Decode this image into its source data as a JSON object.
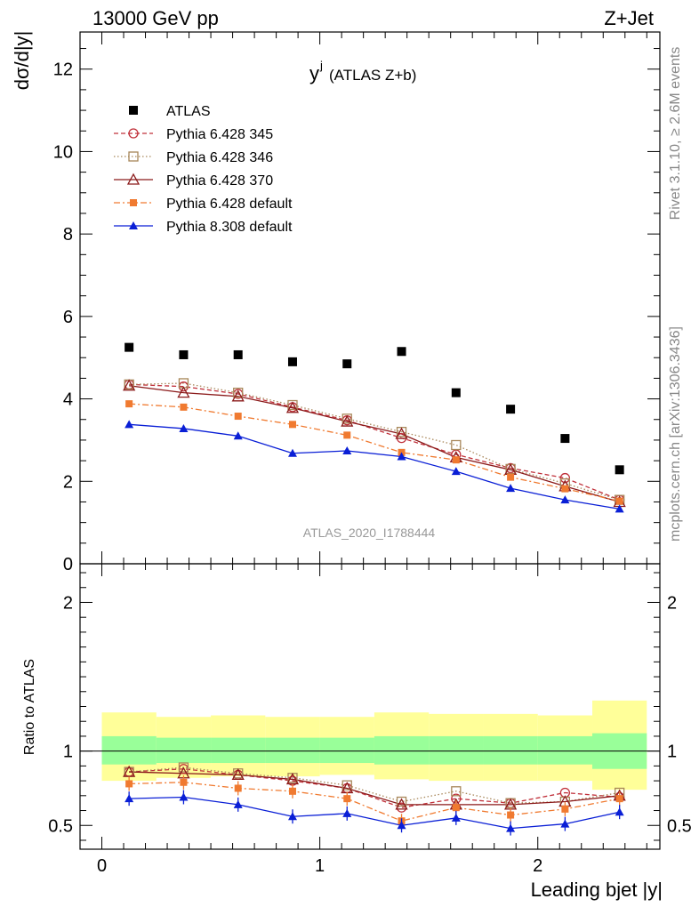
{
  "header": {
    "energy_label": "13000 GeV pp",
    "process_label": "Z+Jet"
  },
  "side_labels": {
    "rivet": "Rivet 3.1.10, ≥ 2.6M events",
    "mcplots": "mcplots.cern.ch [arXiv:1306.3436]"
  },
  "chart_data": {
    "type": "scatter",
    "title_main": "y",
    "title_sup": "j",
    "title_rest": "(ATLAS Z+b)",
    "analysis_id": "ATLAS_2020_I1788444",
    "xlabel": "Leading bjet |y|",
    "ylabel_top": "dσ/d|y|",
    "ylabel_ratio": "Ratio to ATLAS",
    "xlim": [
      -0.1,
      2.56
    ],
    "ylim_top": [
      0,
      12.9
    ],
    "ylim_ratio": [
      0.34,
      2.26
    ],
    "x_ticks": [
      "0",
      "1",
      "2"
    ],
    "y_ticks_top": [
      "0",
      "2",
      "4",
      "6",
      "8",
      "10",
      "12"
    ],
    "y_ticks_ratio": [
      "0.5",
      "1",
      "2"
    ],
    "grid": false,
    "legend_position": "top-left",
    "bins": [
      0.0,
      0.25,
      0.5,
      0.75,
      1.0,
      1.25,
      1.5,
      1.75,
      2.0,
      2.25,
      2.5
    ],
    "x": [
      0.125,
      0.375,
      0.625,
      0.875,
      1.125,
      1.375,
      1.625,
      1.875,
      2.125,
      2.375
    ],
    "data": {
      "name": "ATLAS",
      "values": [
        5.25,
        5.07,
        5.07,
        4.9,
        4.85,
        5.15,
        4.15,
        3.75,
        3.04,
        2.28
      ]
    },
    "band_green": [
      [
        0.91,
        1.1
      ],
      [
        0.92,
        1.09
      ],
      [
        0.92,
        1.09
      ],
      [
        0.92,
        1.09
      ],
      [
        0.92,
        1.09
      ],
      [
        0.91,
        1.1
      ],
      [
        0.91,
        1.1
      ],
      [
        0.91,
        1.1
      ],
      [
        0.91,
        1.1
      ],
      [
        0.88,
        1.12
      ]
    ],
    "band_yellow": [
      [
        0.8,
        1.26
      ],
      [
        0.82,
        1.23
      ],
      [
        0.83,
        1.24
      ],
      [
        0.83,
        1.23
      ],
      [
        0.84,
        1.23
      ],
      [
        0.81,
        1.26
      ],
      [
        0.8,
        1.25
      ],
      [
        0.8,
        1.25
      ],
      [
        0.8,
        1.24
      ],
      [
        0.74,
        1.34
      ]
    ],
    "series": [
      {
        "name": "Pythia 6.428 345",
        "color": "#c0303a",
        "marker": "circle-open",
        "dash": "5,3",
        "values": [
          4.35,
          4.3,
          4.12,
          3.8,
          3.48,
          3.05,
          2.65,
          2.32,
          2.08,
          1.55
        ],
        "ratio": [
          0.86,
          0.88,
          0.84,
          0.8,
          0.75,
          0.62,
          0.68,
          0.65,
          0.72,
          0.69
        ]
      },
      {
        "name": "Pythia 6.428 346",
        "color": "#a8875a",
        "marker": "square-open",
        "dash": "1.5,2.5",
        "values": [
          4.35,
          4.38,
          4.15,
          3.85,
          3.52,
          3.2,
          2.88,
          2.3,
          1.95,
          1.55
        ],
        "ratio": [
          0.86,
          0.89,
          0.85,
          0.82,
          0.77,
          0.66,
          0.73,
          0.65,
          0.66,
          0.72
        ]
      },
      {
        "name": "Pythia 6.428 370",
        "color": "#8b1a1a",
        "marker": "triangle-open",
        "dash": "",
        "values": [
          4.32,
          4.15,
          4.06,
          3.78,
          3.45,
          3.15,
          2.58,
          2.28,
          1.88,
          1.5
        ],
        "ratio": [
          0.86,
          0.85,
          0.84,
          0.81,
          0.75,
          0.64,
          0.64,
          0.64,
          0.66,
          0.7
        ]
      },
      {
        "name": "Pythia 6.428 default",
        "color": "#f07a30",
        "marker": "square-filled",
        "dash": "7,3,2,3",
        "values": [
          3.88,
          3.8,
          3.58,
          3.38,
          3.12,
          2.7,
          2.52,
          2.1,
          1.82,
          1.52
        ],
        "ratio": [
          0.78,
          0.79,
          0.75,
          0.73,
          0.68,
          0.53,
          0.62,
          0.57,
          0.61,
          0.68
        ]
      },
      {
        "name": "Pythia 8.308 default",
        "color": "#0a1fd6",
        "marker": "triangle-filled",
        "dash": "",
        "values": [
          3.38,
          3.28,
          3.1,
          2.68,
          2.74,
          2.6,
          2.24,
          1.83,
          1.55,
          1.33
        ],
        "ratio": [
          0.68,
          0.69,
          0.64,
          0.56,
          0.58,
          0.5,
          0.55,
          0.48,
          0.51,
          0.59
        ]
      }
    ]
  }
}
